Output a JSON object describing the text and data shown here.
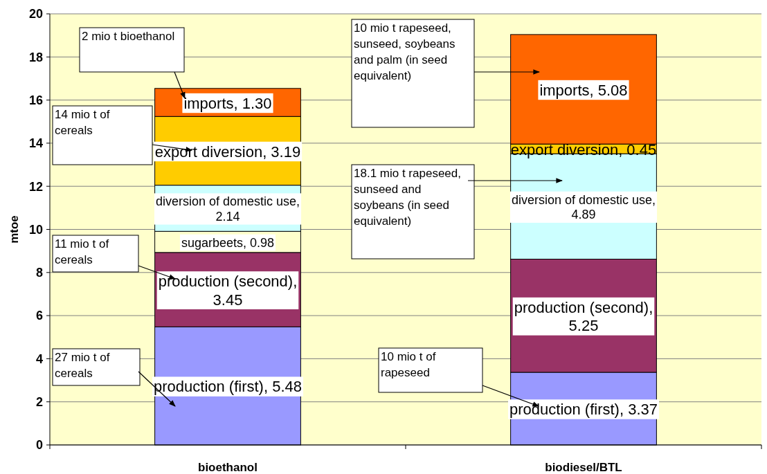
{
  "chart_data": {
    "type": "bar",
    "stacked": true,
    "ylabel": "mtoe",
    "categories": [
      "bioethanol",
      "biodiesel/BTL"
    ],
    "series": [
      {
        "color": "#9999ff",
        "values": [
          5.48,
          3.37
        ],
        "value_labels": [
          "production (first), 5.48",
          "production (first), 3.37"
        ]
      },
      {
        "color": "#993366",
        "values": [
          3.45,
          5.25
        ],
        "value_labels": [
          "production (second), 3.45",
          "production (second), 5.25"
        ]
      },
      {
        "color": "#ffffcc",
        "values": [
          0.98,
          null
        ],
        "value_labels": [
          "sugarbeets, 0.98",
          null
        ]
      },
      {
        "color": "#ccffff",
        "values": [
          2.14,
          4.89
        ],
        "value_labels": [
          "diversion of domestic use, 2.14",
          "diversion of domestic use, 4.89"
        ]
      },
      {
        "color": "#ffcc00",
        "values": [
          3.19,
          0.45
        ],
        "value_labels": [
          "export diversion, 3.19",
          "export diversion, 0.45"
        ]
      },
      {
        "color": "#ff6600",
        "values": [
          1.3,
          5.08
        ],
        "value_labels": [
          "imports, 1.30",
          "imports, 5.08"
        ]
      }
    ],
    "ylim": [
      0,
      20
    ],
    "yticks": [
      0,
      2,
      4,
      6,
      8,
      10,
      12,
      14,
      16,
      18,
      20
    ],
    "grid": "y",
    "annotations": [
      "2 mio t bioethanol",
      "14 mio t of cereals",
      "11 mio t of cereals",
      "27 mio t of cereals",
      "10 mio t rapeseed, sunseed, soybeans and palm (in seed equivalent)",
      "18.1 mio t rapeseed, sunseed and soybeans (in seed equivalent)",
      "10 mio t of rapeseed"
    ]
  }
}
